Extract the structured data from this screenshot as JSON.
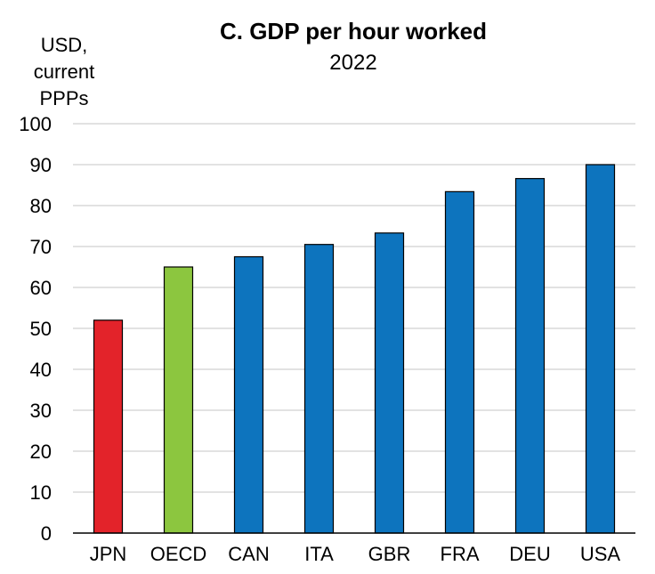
{
  "chart_data": {
    "type": "bar",
    "title": "C. GDP per hour worked",
    "subtitle": "2022",
    "ylabel_lines": [
      "USD,",
      "current",
      "PPPs"
    ],
    "xlabel": "",
    "categories": [
      "JPN",
      "OECD",
      "CAN",
      "ITA",
      "GBR",
      "FRA",
      "DEU",
      "USA"
    ],
    "values": [
      52,
      65,
      67.5,
      70.5,
      73.3,
      83.4,
      86.6,
      90
    ],
    "colors": [
      "#e3232a",
      "#8cc63f",
      "#0d74be",
      "#0d74be",
      "#0d74be",
      "#0d74be",
      "#0d74be",
      "#0d74be"
    ],
    "ylim": [
      0,
      100
    ],
    "yticks": [
      0,
      10,
      20,
      30,
      40,
      50,
      60,
      70,
      80,
      90,
      100
    ],
    "grid": true,
    "legend": "none"
  }
}
